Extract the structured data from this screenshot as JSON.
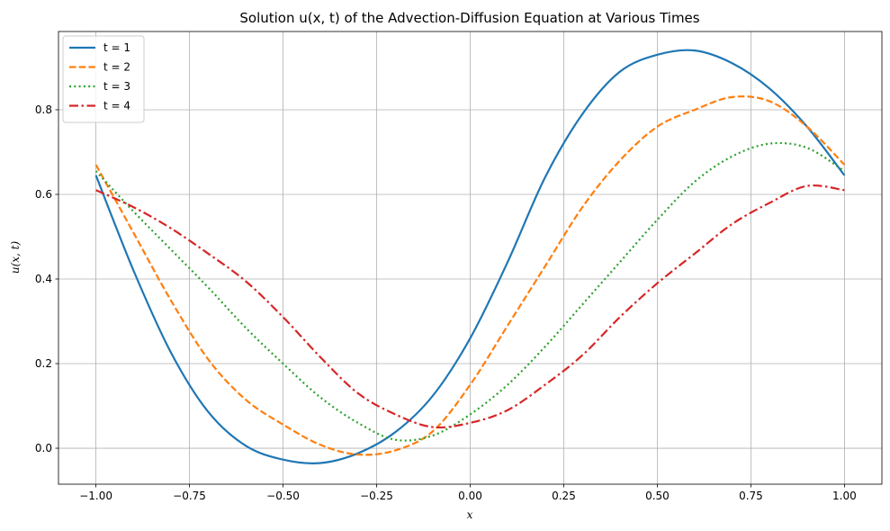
{
  "chart_data": {
    "type": "line",
    "title": "Solution u(x, t) of the Advection-Diffusion Equation at Various Times",
    "xlabel": "x",
    "ylabel": "u(x, t)",
    "xlim": [
      -1.1,
      1.1
    ],
    "ylim": [
      -0.085,
      0.985
    ],
    "xticks": [
      -1.0,
      -0.75,
      -0.5,
      -0.25,
      0.0,
      0.25,
      0.5,
      0.75,
      1.0
    ],
    "xtick_labels": [
      "−1.00",
      "−0.75",
      "−0.50",
      "−0.25",
      "0.00",
      "0.25",
      "0.50",
      "0.75",
      "1.00"
    ],
    "yticks": [
      0.0,
      0.2,
      0.4,
      0.6,
      0.8
    ],
    "ytick_labels": [
      "0.0",
      "0.2",
      "0.4",
      "0.6",
      "0.8"
    ],
    "grid": true,
    "legend_position": "top-left",
    "x": [
      -1.0,
      -0.9,
      -0.8,
      -0.7,
      -0.6,
      -0.5,
      -0.4,
      -0.3,
      -0.2,
      -0.1,
      0.0,
      0.1,
      0.2,
      0.3,
      0.4,
      0.5,
      0.6,
      0.7,
      0.8,
      0.9,
      1.0
    ],
    "series": [
      {
        "name": "t = 1",
        "color": "#1f77b4",
        "dash": "solid",
        "values": [
          0.645,
          0.421,
          0.227,
          0.086,
          0.006,
          -0.027,
          -0.035,
          -0.012,
          0.038,
          0.124,
          0.26,
          0.44,
          0.64,
          0.79,
          0.89,
          0.93,
          0.94,
          0.91,
          0.85,
          0.76,
          0.645
        ]
      },
      {
        "name": "t = 2",
        "color": "#ff7f0e",
        "dash": "dashed",
        "values": [
          0.67,
          0.51,
          0.35,
          0.21,
          0.115,
          0.056,
          0.008,
          -0.015,
          -0.005,
          0.04,
          0.15,
          0.29,
          0.43,
          0.57,
          0.68,
          0.76,
          0.8,
          0.83,
          0.82,
          0.76,
          0.67
        ]
      },
      {
        "name": "t = 3",
        "color": "#2ca02c",
        "dash": "dotted",
        "values": [
          0.655,
          0.56,
          0.47,
          0.38,
          0.285,
          0.2,
          0.12,
          0.06,
          0.02,
          0.03,
          0.08,
          0.15,
          0.24,
          0.34,
          0.44,
          0.54,
          0.63,
          0.69,
          0.72,
          0.71,
          0.655
        ]
      },
      {
        "name": "t = 4",
        "color": "#d62728",
        "dash": "dashdot",
        "values": [
          0.61,
          0.57,
          0.52,
          0.46,
          0.395,
          0.31,
          0.215,
          0.13,
          0.08,
          0.05,
          0.06,
          0.09,
          0.15,
          0.22,
          0.31,
          0.39,
          0.46,
          0.53,
          0.58,
          0.62,
          0.61
        ]
      }
    ]
  }
}
